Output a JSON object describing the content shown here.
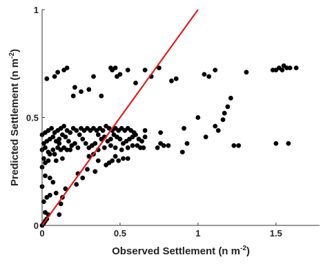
{
  "chart_data": {
    "type": "scatter",
    "xlabel": "Observed Settlement (n m",
    "xlabel_sup": "-2",
    "xlabel_tail": ")",
    "ylabel": "Predicted Settlement (n m",
    "ylabel_sup": "-2",
    "ylabel_tail": ")",
    "xlim": [
      0,
      1.78
    ],
    "ylim": [
      0,
      1
    ],
    "x_ticks": [
      {
        "value": 0,
        "label": "0"
      },
      {
        "value": 0.5,
        "label": "0.5"
      },
      {
        "value": 1,
        "label": "1"
      },
      {
        "value": 1.5,
        "label": "1.5"
      }
    ],
    "y_ticks": [
      {
        "value": 0,
        "label": "0"
      },
      {
        "value": 0.5,
        "label": "0.5"
      },
      {
        "value": 1,
        "label": "1"
      }
    ],
    "grid": false,
    "legend": "none",
    "colors": {
      "points": "#000000",
      "reference_line": "#e31a1c",
      "axis": "#333333"
    },
    "reference_line": {
      "x": [
        0,
        1
      ],
      "y": [
        0,
        1
      ]
    },
    "points": [
      [
        0.0,
        0.0
      ],
      [
        0.01,
        0.01
      ],
      [
        0.02,
        0.02
      ],
      [
        0.03,
        0.03
      ],
      [
        0.04,
        0.05
      ],
      [
        0.02,
        0.06
      ],
      [
        0.01,
        0.11
      ],
      [
        0.03,
        0.13
      ],
      [
        0.05,
        0.14
      ],
      [
        0.0,
        0.18
      ],
      [
        0.02,
        0.23
      ],
      [
        0.05,
        0.22
      ],
      [
        0.07,
        0.2
      ],
      [
        0.09,
        0.15
      ],
      [
        0.12,
        0.1
      ],
      [
        0.11,
        0.05
      ],
      [
        0.13,
        0.13
      ],
      [
        0.15,
        0.17
      ],
      [
        0.0,
        0.27
      ],
      [
        0.02,
        0.29
      ],
      [
        0.04,
        0.3
      ],
      [
        0.01,
        0.31
      ],
      [
        0.05,
        0.33
      ],
      [
        0.0,
        0.35
      ],
      [
        0.02,
        0.36
      ],
      [
        0.04,
        0.34
      ],
      [
        0.07,
        0.35
      ],
      [
        0.08,
        0.33
      ],
      [
        0.09,
        0.3
      ],
      [
        0.1,
        0.36
      ],
      [
        0.11,
        0.38
      ],
      [
        0.12,
        0.35
      ],
      [
        0.14,
        0.36
      ],
      [
        0.16,
        0.35
      ],
      [
        0.18,
        0.35
      ],
      [
        0.13,
        0.31
      ],
      [
        0.01,
        0.38
      ],
      [
        0.03,
        0.39
      ],
      [
        0.05,
        0.4
      ],
      [
        0.07,
        0.41
      ],
      [
        0.09,
        0.39
      ],
      [
        0.11,
        0.4
      ],
      [
        0.13,
        0.42
      ],
      [
        0.15,
        0.41
      ],
      [
        0.17,
        0.39
      ],
      [
        0.19,
        0.37
      ],
      [
        0.21,
        0.38
      ],
      [
        0.23,
        0.36
      ],
      [
        0.0,
        0.42
      ],
      [
        0.02,
        0.43
      ],
      [
        0.04,
        0.44
      ],
      [
        0.06,
        0.45
      ],
      [
        0.08,
        0.43
      ],
      [
        0.1,
        0.44
      ],
      [
        0.12,
        0.45
      ],
      [
        0.14,
        0.46
      ],
      [
        0.16,
        0.44
      ],
      [
        0.18,
        0.43
      ],
      [
        0.2,
        0.45
      ],
      [
        0.22,
        0.44
      ],
      [
        0.24,
        0.42
      ],
      [
        0.26,
        0.4
      ],
      [
        0.28,
        0.38
      ],
      [
        0.3,
        0.36
      ],
      [
        0.32,
        0.37
      ],
      [
        0.34,
        0.38
      ],
      [
        0.25,
        0.45
      ],
      [
        0.27,
        0.44
      ],
      [
        0.29,
        0.45
      ],
      [
        0.31,
        0.44
      ],
      [
        0.33,
        0.45
      ],
      [
        0.35,
        0.44
      ],
      [
        0.37,
        0.45
      ],
      [
        0.39,
        0.44
      ],
      [
        0.41,
        0.46
      ],
      [
        0.43,
        0.45
      ],
      [
        0.45,
        0.44
      ],
      [
        0.47,
        0.45
      ],
      [
        0.49,
        0.44
      ],
      [
        0.51,
        0.45
      ],
      [
        0.53,
        0.44
      ],
      [
        0.55,
        0.45
      ],
      [
        0.57,
        0.44
      ],
      [
        0.59,
        0.43
      ],
      [
        0.36,
        0.42
      ],
      [
        0.38,
        0.4
      ],
      [
        0.4,
        0.41
      ],
      [
        0.42,
        0.39
      ],
      [
        0.44,
        0.4
      ],
      [
        0.46,
        0.42
      ],
      [
        0.48,
        0.41
      ],
      [
        0.5,
        0.4
      ],
      [
        0.52,
        0.38
      ],
      [
        0.54,
        0.39
      ],
      [
        0.56,
        0.4
      ],
      [
        0.58,
        0.41
      ],
      [
        0.6,
        0.42
      ],
      [
        0.62,
        0.4
      ],
      [
        0.64,
        0.39
      ],
      [
        0.66,
        0.41
      ],
      [
        0.61,
        0.37
      ],
      [
        0.63,
        0.36
      ],
      [
        0.3,
        0.32
      ],
      [
        0.33,
        0.33
      ],
      [
        0.36,
        0.35
      ],
      [
        0.4,
        0.36
      ],
      [
        0.44,
        0.37
      ],
      [
        0.47,
        0.36
      ],
      [
        0.51,
        0.35
      ],
      [
        0.55,
        0.36
      ],
      [
        0.58,
        0.37
      ],
      [
        0.41,
        0.28
      ],
      [
        0.43,
        0.29
      ],
      [
        0.45,
        0.3
      ],
      [
        0.47,
        0.32
      ],
      [
        0.49,
        0.3
      ],
      [
        0.52,
        0.31
      ],
      [
        0.36,
        0.3
      ],
      [
        0.34,
        0.25
      ],
      [
        0.29,
        0.26
      ],
      [
        0.26,
        0.22
      ],
      [
        0.23,
        0.24
      ],
      [
        0.22,
        0.19
      ],
      [
        0.55,
        0.31
      ],
      [
        0.65,
        0.36
      ],
      [
        0.76,
        0.38
      ],
      [
        0.78,
        0.37
      ],
      [
        0.81,
        0.37
      ],
      [
        0.74,
        0.36
      ],
      [
        0.9,
        0.34
      ],
      [
        0.93,
        0.38
      ],
      [
        0.91,
        0.45
      ],
      [
        0.76,
        0.43
      ],
      [
        0.66,
        0.44
      ],
      [
        1.05,
        0.41
      ],
      [
        1.11,
        0.46
      ],
      [
        1.13,
        0.44
      ],
      [
        1.16,
        0.49
      ],
      [
        1.17,
        0.52
      ],
      [
        1.19,
        0.55
      ],
      [
        1.21,
        0.59
      ],
      [
        1.23,
        0.37
      ],
      [
        1.26,
        0.37
      ],
      [
        1.5,
        0.38
      ],
      [
        1.58,
        0.38
      ],
      [
        1.0,
        0.5
      ],
      [
        0.03,
        0.68
      ],
      [
        0.08,
        0.69
      ],
      [
        0.1,
        0.71
      ],
      [
        0.14,
        0.72
      ],
      [
        0.16,
        0.73
      ],
      [
        0.2,
        0.6
      ],
      [
        0.21,
        0.64
      ],
      [
        0.25,
        0.62
      ],
      [
        0.3,
        0.63
      ],
      [
        0.33,
        0.69
      ],
      [
        0.38,
        0.6
      ],
      [
        0.44,
        0.73
      ],
      [
        0.45,
        0.72
      ],
      [
        0.47,
        0.73
      ],
      [
        0.48,
        0.69
      ],
      [
        0.5,
        0.7
      ],
      [
        0.55,
        0.72
      ],
      [
        0.6,
        0.66
      ],
      [
        0.66,
        0.72
      ],
      [
        0.7,
        0.69
      ],
      [
        0.75,
        0.73
      ],
      [
        0.83,
        0.67
      ],
      [
        0.86,
        0.68
      ],
      [
        1.04,
        0.7
      ],
      [
        1.07,
        0.69
      ],
      [
        1.11,
        0.72
      ],
      [
        1.31,
        0.71
      ],
      [
        1.48,
        0.72
      ],
      [
        1.5,
        0.72
      ],
      [
        1.52,
        0.73
      ],
      [
        1.55,
        0.74
      ],
      [
        1.57,
        0.73
      ],
      [
        1.59,
        0.73
      ],
      [
        1.63,
        0.73
      ],
      [
        1.54,
        0.72
      ]
    ]
  }
}
